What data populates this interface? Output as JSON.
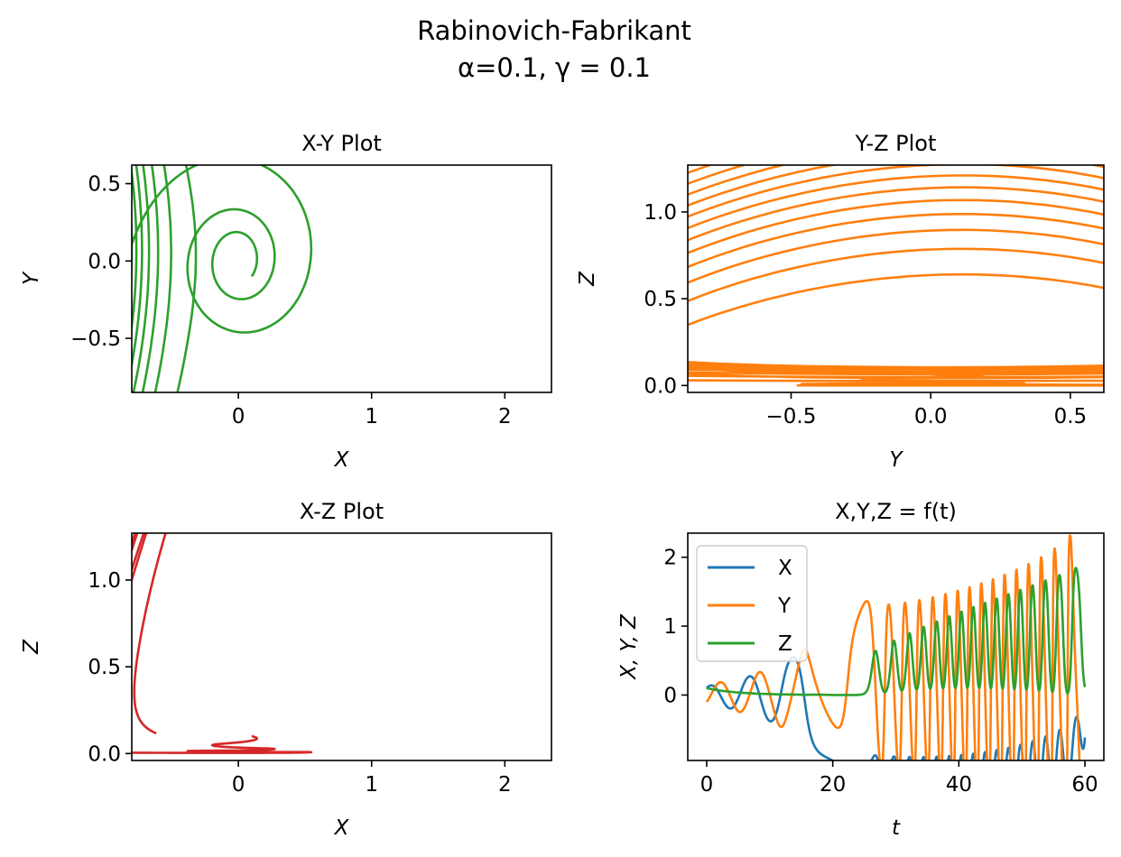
{
  "figure": {
    "suptitle_line1": "Rabinovich-Fabrikant",
    "suptitle_line2": "α=0.1, γ = 0.1",
    "parameters": {
      "alpha": 0.1,
      "gamma": 0.1
    },
    "simulation": {
      "t_start": 0,
      "t_end": 60,
      "initial_state": {
        "X": 0.1,
        "Y": -0.1,
        "Z": 0.1
      }
    }
  },
  "chart_data": [
    {
      "type": "line",
      "title": "X-Y Plot",
      "xlabel": "X",
      "ylabel": "Y",
      "x_variable": "X",
      "y_variable": "Y",
      "color": "#2ca02c",
      "xlim": [
        -0.8,
        2.35
      ],
      "ylim": [
        -0.85,
        0.62
      ],
      "xticks": [
        0,
        1,
        2
      ],
      "xtick_labels": [
        "0",
        "1",
        "2"
      ],
      "yticks": [
        -0.5,
        0,
        0.5
      ],
      "ytick_labels": [
        "−0.5",
        "0.0",
        "0.5"
      ],
      "grid": false
    },
    {
      "type": "line",
      "title": "Y-Z Plot",
      "xlabel": "Y",
      "ylabel": "Z",
      "x_variable": "Y",
      "y_variable": "Z",
      "color": "#ff7f0e",
      "xlim": [
        -0.87,
        0.62
      ],
      "ylim": [
        -0.04,
        1.27
      ],
      "xticks": [
        -0.5,
        0,
        0.5
      ],
      "xtick_labels": [
        "−0.5",
        "0.0",
        "0.5"
      ],
      "yticks": [
        0,
        0.5,
        1
      ],
      "ytick_labels": [
        "0.0",
        "0.5",
        "1.0"
      ],
      "grid": false
    },
    {
      "type": "line",
      "title": "X-Z Plot",
      "xlabel": "X",
      "ylabel": "Z",
      "x_variable": "X",
      "y_variable": "Z",
      "color": "#d62728",
      "xlim": [
        -0.8,
        2.35
      ],
      "ylim": [
        -0.04,
        1.27
      ],
      "xticks": [
        0,
        1,
        2
      ],
      "xtick_labels": [
        "0",
        "1",
        "2"
      ],
      "yticks": [
        0,
        0.5,
        1
      ],
      "ytick_labels": [
        "0.0",
        "0.5",
        "1.0"
      ],
      "grid": false
    },
    {
      "type": "line",
      "title": "X,Y,Z = f(t)",
      "xlabel": "t",
      "ylabel": "X, Y, Z",
      "x_variable": "t",
      "xlim": [
        -3,
        63
      ],
      "ylim": [
        -0.95,
        2.35
      ],
      "xticks": [
        0,
        20,
        40,
        60
      ],
      "xtick_labels": [
        "0",
        "20",
        "40",
        "60"
      ],
      "yticks": [
        0,
        1,
        2
      ],
      "ytick_labels": [
        "0",
        "1",
        "2"
      ],
      "legend": "upper left",
      "series": [
        {
          "name": "X",
          "variable": "X",
          "color": "#1f77b4"
        },
        {
          "name": "Y",
          "variable": "Y",
          "color": "#ff7f0e"
        },
        {
          "name": "Z",
          "variable": "Z",
          "color": "#2ca02c"
        }
      ],
      "grid": false
    }
  ]
}
